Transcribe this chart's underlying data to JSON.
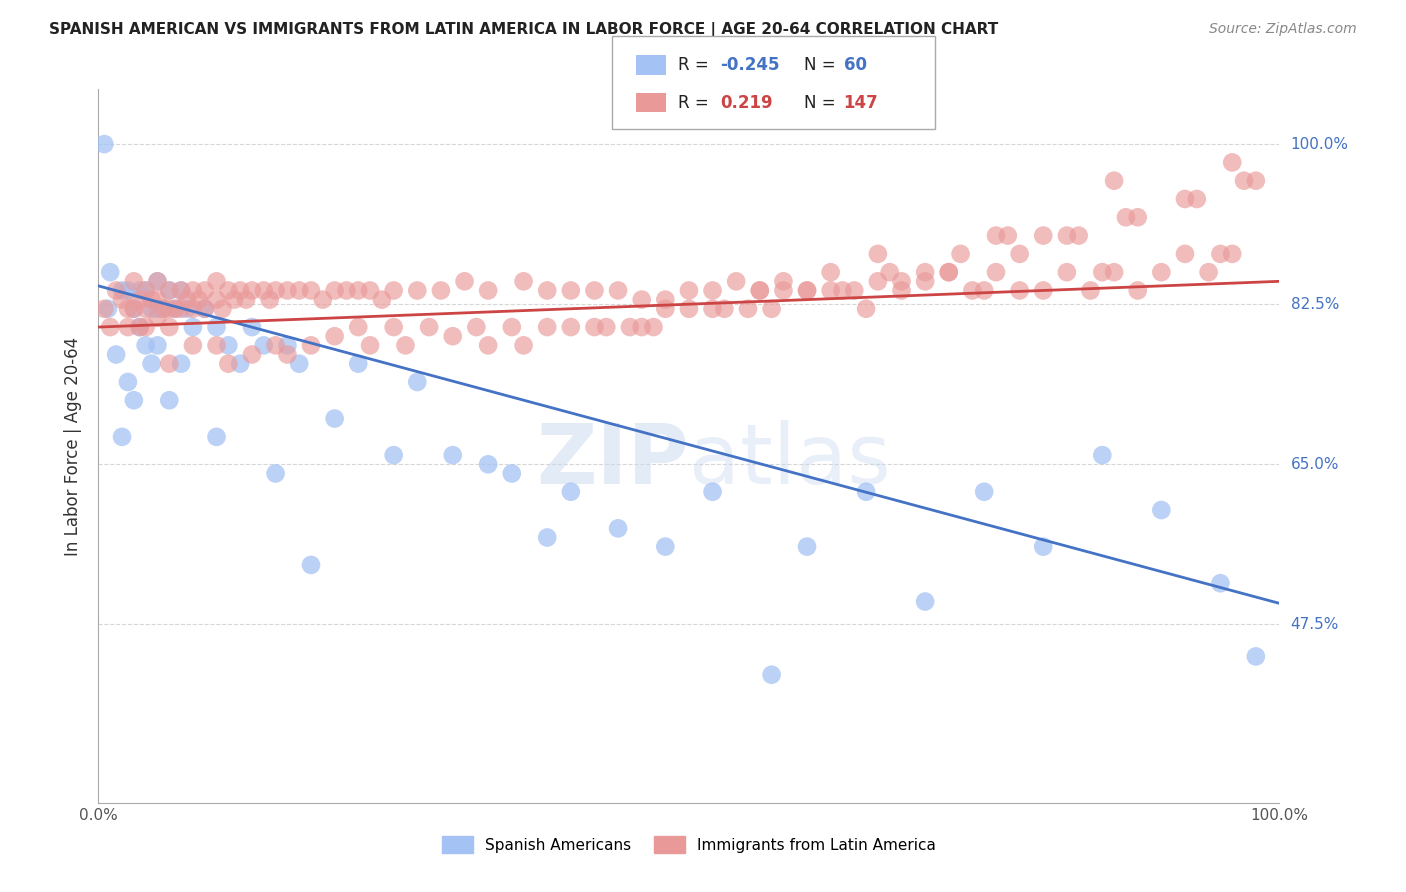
{
  "title": "SPANISH AMERICAN VS IMMIGRANTS FROM LATIN AMERICA IN LABOR FORCE | AGE 20-64 CORRELATION CHART",
  "source": "Source: ZipAtlas.com",
  "ylabel": "In Labor Force | Age 20-64",
  "xlim": [
    0.0,
    1.0
  ],
  "ylim": [
    0.28,
    1.06
  ],
  "blue_R": -0.245,
  "blue_N": 60,
  "pink_R": 0.219,
  "pink_N": 147,
  "blue_color": "#a4c2f4",
  "pink_color": "#ea9999",
  "blue_line_color": "#4472c4",
  "pink_line_color": "#cc4444",
  "background_color": "#ffffff",
  "grid_color": "#cccccc",
  "watermark": "ZIPatlas",
  "blue_scatter_x": [
    0.005,
    0.008,
    0.01,
    0.015,
    0.02,
    0.02,
    0.025,
    0.025,
    0.03,
    0.03,
    0.035,
    0.035,
    0.04,
    0.04,
    0.045,
    0.045,
    0.05,
    0.05,
    0.05,
    0.055,
    0.06,
    0.06,
    0.065,
    0.07,
    0.07,
    0.075,
    0.08,
    0.09,
    0.1,
    0.1,
    0.11,
    0.12,
    0.13,
    0.14,
    0.15,
    0.16,
    0.17,
    0.18,
    0.2,
    0.22,
    0.25,
    0.27,
    0.3,
    0.33,
    0.35,
    0.38,
    0.4,
    0.44,
    0.48,
    0.52,
    0.57,
    0.6,
    0.65,
    0.7,
    0.75,
    0.8,
    0.85,
    0.9,
    0.95,
    0.98
  ],
  "blue_scatter_y": [
    1.0,
    0.82,
    0.86,
    0.77,
    0.84,
    0.68,
    0.84,
    0.74,
    0.82,
    0.72,
    0.84,
    0.8,
    0.84,
    0.78,
    0.82,
    0.76,
    0.85,
    0.82,
    0.78,
    0.82,
    0.84,
    0.72,
    0.82,
    0.84,
    0.76,
    0.82,
    0.8,
    0.82,
    0.8,
    0.68,
    0.78,
    0.76,
    0.8,
    0.78,
    0.64,
    0.78,
    0.76,
    0.54,
    0.7,
    0.76,
    0.66,
    0.74,
    0.66,
    0.65,
    0.64,
    0.57,
    0.62,
    0.58,
    0.56,
    0.62,
    0.42,
    0.56,
    0.62,
    0.5,
    0.62,
    0.56,
    0.66,
    0.6,
    0.52,
    0.44
  ],
  "pink_scatter_x": [
    0.005,
    0.01,
    0.015,
    0.02,
    0.025,
    0.025,
    0.03,
    0.03,
    0.035,
    0.035,
    0.04,
    0.04,
    0.04,
    0.045,
    0.05,
    0.05,
    0.05,
    0.055,
    0.06,
    0.06,
    0.06,
    0.065,
    0.07,
    0.07,
    0.075,
    0.08,
    0.08,
    0.085,
    0.09,
    0.09,
    0.1,
    0.1,
    0.105,
    0.11,
    0.115,
    0.12,
    0.125,
    0.13,
    0.14,
    0.145,
    0.15,
    0.16,
    0.17,
    0.18,
    0.19,
    0.2,
    0.21,
    0.22,
    0.23,
    0.24,
    0.25,
    0.27,
    0.29,
    0.31,
    0.33,
    0.36,
    0.38,
    0.4,
    0.42,
    0.44,
    0.46,
    0.48,
    0.5,
    0.52,
    0.54,
    0.56,
    0.58,
    0.6,
    0.62,
    0.64,
    0.66,
    0.68,
    0.7,
    0.72,
    0.74,
    0.76,
    0.78,
    0.8,
    0.82,
    0.84,
    0.86,
    0.88,
    0.9,
    0.92,
    0.94,
    0.96,
    0.98,
    0.35,
    0.45,
    0.55,
    0.65,
    0.75,
    0.85,
    0.95,
    0.3,
    0.4,
    0.5,
    0.6,
    0.7,
    0.8,
    0.2,
    0.25,
    0.32,
    0.42,
    0.52,
    0.62,
    0.72,
    0.82,
    0.92,
    0.15,
    0.22,
    0.38,
    0.48,
    0.58,
    0.68,
    0.78,
    0.88,
    0.1,
    0.18,
    0.28,
    0.43,
    0.53,
    0.63,
    0.73,
    0.83,
    0.93,
    0.08,
    0.13,
    0.23,
    0.33,
    0.47,
    0.57,
    0.67,
    0.77,
    0.87,
    0.97,
    0.06,
    0.11,
    0.16,
    0.26,
    0.36,
    0.46,
    0.56,
    0.66,
    0.76,
    0.86,
    0.96
  ],
  "pink_scatter_y": [
    0.82,
    0.8,
    0.84,
    0.83,
    0.82,
    0.8,
    0.85,
    0.82,
    0.83,
    0.8,
    0.84,
    0.82,
    0.8,
    0.83,
    0.85,
    0.83,
    0.81,
    0.82,
    0.84,
    0.82,
    0.8,
    0.82,
    0.84,
    0.82,
    0.83,
    0.84,
    0.82,
    0.83,
    0.84,
    0.82,
    0.85,
    0.83,
    0.82,
    0.84,
    0.83,
    0.84,
    0.83,
    0.84,
    0.84,
    0.83,
    0.84,
    0.84,
    0.84,
    0.84,
    0.83,
    0.84,
    0.84,
    0.84,
    0.84,
    0.83,
    0.84,
    0.84,
    0.84,
    0.85,
    0.84,
    0.85,
    0.84,
    0.84,
    0.84,
    0.84,
    0.83,
    0.83,
    0.84,
    0.84,
    0.85,
    0.84,
    0.85,
    0.84,
    0.86,
    0.84,
    0.85,
    0.85,
    0.85,
    0.86,
    0.84,
    0.86,
    0.84,
    0.84,
    0.86,
    0.84,
    0.86,
    0.84,
    0.86,
    0.88,
    0.86,
    0.88,
    0.96,
    0.8,
    0.8,
    0.82,
    0.82,
    0.84,
    0.86,
    0.88,
    0.79,
    0.8,
    0.82,
    0.84,
    0.86,
    0.9,
    0.79,
    0.8,
    0.8,
    0.8,
    0.82,
    0.84,
    0.86,
    0.9,
    0.94,
    0.78,
    0.8,
    0.8,
    0.82,
    0.84,
    0.84,
    0.88,
    0.92,
    0.78,
    0.78,
    0.8,
    0.8,
    0.82,
    0.84,
    0.88,
    0.9,
    0.94,
    0.78,
    0.77,
    0.78,
    0.78,
    0.8,
    0.82,
    0.86,
    0.9,
    0.92,
    0.96,
    0.76,
    0.76,
    0.77,
    0.78,
    0.78,
    0.8,
    0.84,
    0.88,
    0.9,
    0.96,
    0.98
  ]
}
